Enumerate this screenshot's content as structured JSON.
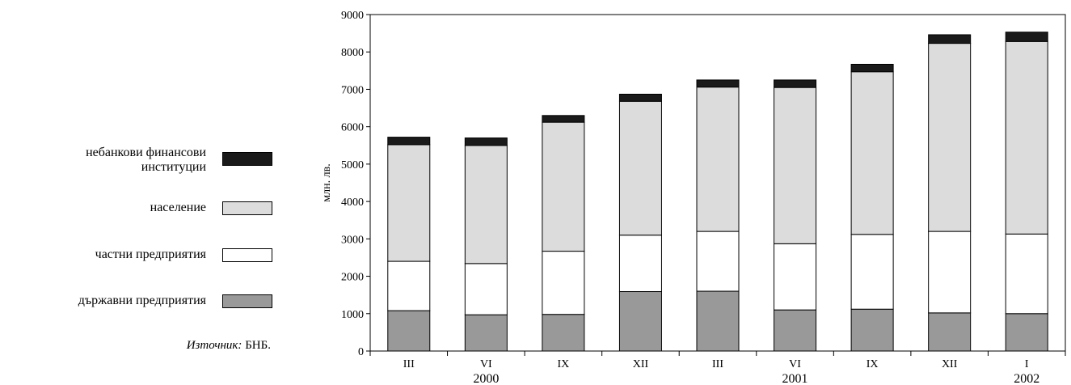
{
  "chart_data": {
    "type": "bar",
    "stacked": true,
    "categories": [
      "III",
      "VI",
      "IX",
      "XII",
      "III",
      "VI",
      "IX",
      "XII",
      "I"
    ],
    "year_labels": [
      {
        "label": "2000",
        "category_index": 1
      },
      {
        "label": "2001",
        "category_index": 5
      },
      {
        "label": "2002",
        "category_index": 8
      }
    ],
    "ylabel": "млн. лв.",
    "ylim": [
      0,
      9000
    ],
    "yticks": [
      0,
      1000,
      2000,
      3000,
      4000,
      5000,
      6000,
      7000,
      8000,
      9000
    ],
    "grid": false,
    "legend_position": "left",
    "series": [
      {
        "name": "държавни предприятия",
        "color": "#999999",
        "values": [
          1080,
          970,
          980,
          1590,
          1600,
          1100,
          1120,
          1020,
          1000
        ]
      },
      {
        "name": "частни предприятия",
        "color": "#ffffff",
        "values": [
          1320,
          1370,
          1690,
          1510,
          1600,
          1770,
          2000,
          2180,
          2130
        ]
      },
      {
        "name": "население",
        "color": "#dcdcdc",
        "values": [
          3120,
          3160,
          3450,
          3580,
          3860,
          4180,
          4350,
          5030,
          5150
        ]
      },
      {
        "name": "небанкови финансови институции",
        "color": "#1a1a1a",
        "values": [
          200,
          200,
          180,
          190,
          190,
          200,
          200,
          230,
          250
        ]
      }
    ]
  },
  "legend": {
    "items": [
      {
        "label_line1": "небанкови финансови",
        "label_line2": "институции",
        "color": "#1a1a1a"
      },
      {
        "label_line1": "население",
        "label_line2": "",
        "color": "#dcdcdc"
      },
      {
        "label_line1": "частни предприятия",
        "label_line2": "",
        "color": "#ffffff"
      },
      {
        "label_line1": "държавни предприятия",
        "label_line2": "",
        "color": "#999999"
      }
    ]
  },
  "source": {
    "prefix": "Източник:",
    "text": "БНБ."
  }
}
